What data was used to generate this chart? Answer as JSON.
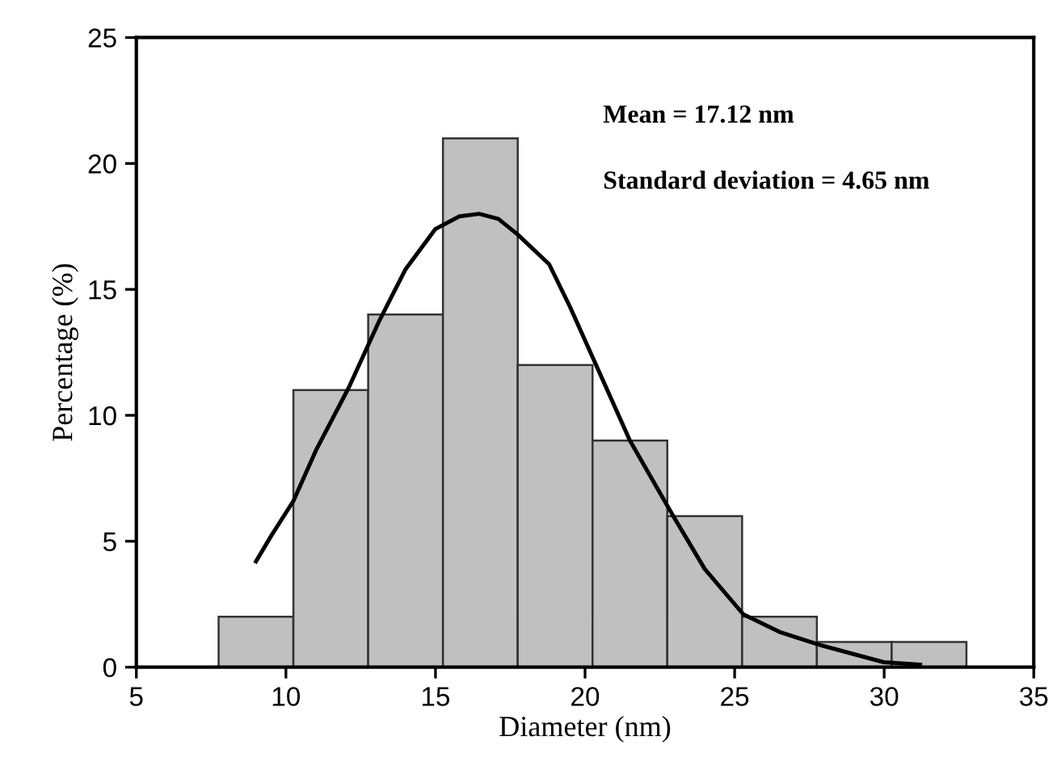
{
  "chart_data": [
    {
      "type": "histogram",
      "xlabel": "Diameter (nm)",
      "ylabel": "Percentage (%)",
      "bins": [
        7.75,
        10.25,
        12.75,
        15.25,
        17.75,
        20.25,
        22.75,
        25.25,
        27.75,
        30.25,
        32.75
      ],
      "values": [
        2,
        11,
        14,
        21,
        12,
        9,
        6,
        2,
        1,
        1
      ],
      "color": "#c0c0c0",
      "series": [
        {
          "type": "line",
          "color": "#000000",
          "x": [
            9.0,
            9.5,
            10.25,
            11.0,
            12.1,
            13.1,
            14.0,
            15.0,
            15.8,
            16.46,
            17.1,
            17.73,
            18.8,
            19.5,
            20.33,
            21.5,
            22.95,
            24.0,
            25.29,
            26.5,
            27.8,
            29.98,
            31.2
          ],
          "values": [
            4.2,
            5.2,
            6.6,
            8.6,
            11.1,
            13.7,
            15.8,
            17.4,
            17.9,
            18.0,
            17.8,
            17.2,
            16.0,
            14.3,
            12.1,
            9.0,
            6.0,
            3.9,
            2.1,
            1.4,
            0.9,
            0.2,
            0.1
          ]
        }
      ],
      "annotations": [
        "Mean = 17.12 nm",
        "Standard deviation = 4.65 nm"
      ],
      "xlim": [
        5,
        35
      ],
      "xticks": [
        5,
        10,
        15,
        20,
        25,
        30,
        35
      ],
      "ylim": [
        0,
        25
      ],
      "yticks": [
        0,
        5,
        10,
        15,
        20,
        25
      ],
      "grid": false,
      "legend": false,
      "line_style": "solid",
      "marker": "none"
    }
  ]
}
